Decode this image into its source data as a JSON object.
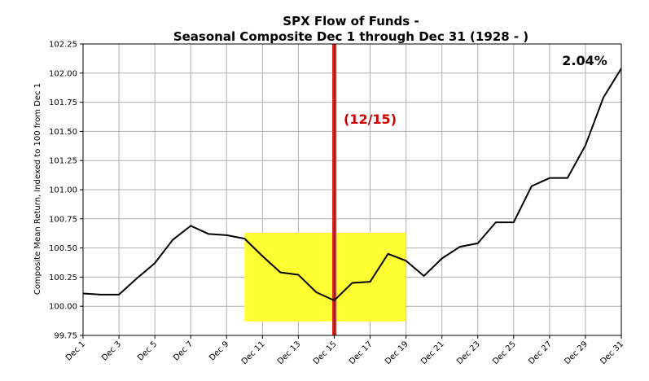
{
  "chart_data": {
    "type": "line",
    "title_line1": "SPX Flow of Funds -",
    "title_line2": "Seasonal Composite Dec 1 through Dec 31 (1928 - )",
    "ylabel": "Composite Mean Return, Indexed to 100 from Dec 1",
    "ylim": [
      99.75,
      102.25
    ],
    "yticks": [
      "99.75",
      "100.00",
      "100.25",
      "100.50",
      "100.75",
      "101.00",
      "101.25",
      "101.50",
      "101.75",
      "102.00",
      "102.25"
    ],
    "xticks": [
      "Dec 1",
      "Dec 3",
      "Dec 5",
      "Dec 7",
      "Dec 9",
      "Dec 11",
      "Dec 13",
      "Dec 15",
      "Dec 17",
      "Dec 19",
      "Dec 21",
      "Dec 23",
      "Dec 25",
      "Dec 27",
      "Dec 29",
      "Dec 31"
    ],
    "x": [
      1,
      2,
      3,
      4,
      5,
      6,
      7,
      8,
      9,
      10,
      11,
      12,
      13,
      14,
      15,
      16,
      17,
      18,
      19,
      20,
      21,
      22,
      23,
      24,
      25,
      26,
      27,
      28,
      29,
      30,
      31
    ],
    "y": [
      100.11,
      100.1,
      100.1,
      100.24,
      100.37,
      100.57,
      100.69,
      100.62,
      100.61,
      100.58,
      100.43,
      100.29,
      100.27,
      100.12,
      100.05,
      100.2,
      100.21,
      100.45,
      100.39,
      100.26,
      100.41,
      100.51,
      100.54,
      100.72,
      100.72,
      101.03,
      101.1,
      101.1,
      101.38,
      101.79,
      102.04
    ],
    "line_color": "#000000",
    "grid": true,
    "highlight_region": {
      "x_start": 10,
      "x_end": 19,
      "y_start": 99.87,
      "y_end": 100.63,
      "color": "#ffff33"
    },
    "vline": {
      "x": 15,
      "color": "#e8231f",
      "label": "(12/15)",
      "label_color": "#cc0000"
    },
    "annotation": "2.04%"
  }
}
